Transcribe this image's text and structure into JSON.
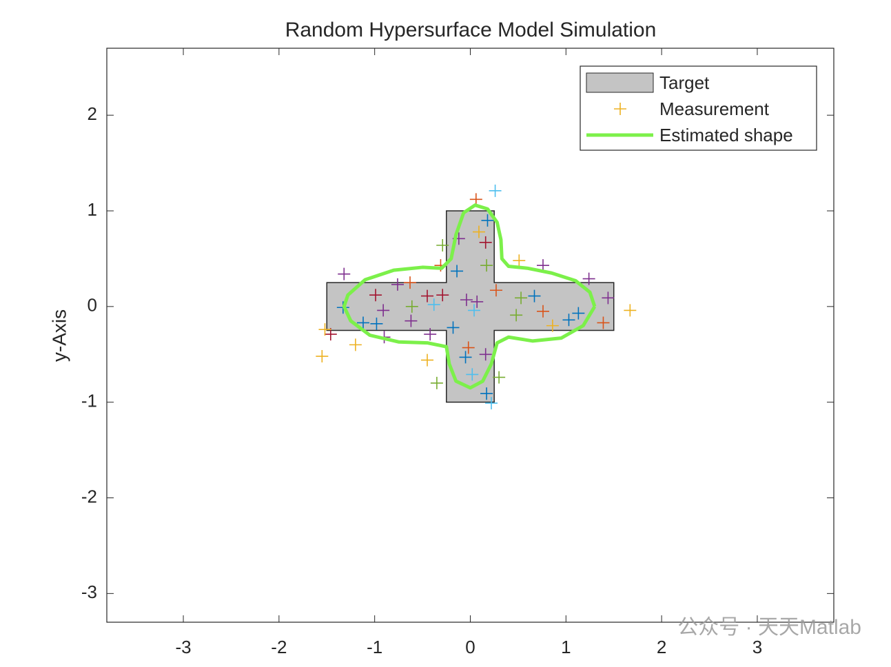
{
  "chart_data": {
    "type": "shape",
    "title": "Random Hypersurface Model Simulation",
    "y_label": "y-Axis",
    "watermark": "公众号 · 天天Matlab",
    "xlim": [
      -3.8,
      3.8
    ],
    "ylim": [
      -3.3,
      2.7
    ],
    "xticks": [
      -3,
      -2,
      -1,
      0,
      1,
      2,
      3
    ],
    "yticks": [
      -3,
      -2,
      -1,
      0,
      1,
      2
    ],
    "legend": "upper right",
    "series": [
      {
        "name": "Target",
        "kind": "polygon",
        "color": "#c4c4c4",
        "x": [
          -0.25,
          0.25,
          0.25,
          1.5,
          1.5,
          0.25,
          0.25,
          -0.25,
          -0.25,
          -1.5,
          -1.5,
          -0.25
        ],
        "y": [
          1,
          1,
          0.25,
          0.25,
          -0.25,
          -0.25,
          -1,
          -1,
          -0.25,
          -0.25,
          0.25,
          0.25
        ]
      },
      {
        "name": "Measurement",
        "kind": "points",
        "color": "#EDB120",
        "x": [
          0.26,
          0.06,
          -1.32,
          -0.29,
          -0.12,
          0.16,
          0.09,
          0.18,
          0.51,
          0.76,
          1.24,
          1.44,
          1.67,
          1.39,
          1.13,
          1.03,
          0.86,
          0.76,
          0.48,
          0.67,
          0.53,
          0.27,
          0.07,
          0.04,
          -0.18,
          -0.14,
          -0.31,
          0.17,
          -0.04,
          -0.29,
          -0.38,
          -0.61,
          -0.45,
          -0.63,
          -0.76,
          -0.99,
          -0.91,
          -1.33,
          -1.12,
          -0.98,
          -0.62,
          -0.42,
          -0.9,
          -1.46,
          -1.52,
          -1.2,
          -1.55,
          -0.45,
          -0.35,
          -0.05,
          -0.02,
          0.16,
          0.3,
          0.02,
          0.22,
          0.17
        ],
        "y": [
          1.21,
          1.12,
          0.34,
          0.64,
          0.71,
          0.67,
          0.78,
          0.9,
          0.48,
          0.43,
          0.29,
          0.09,
          -0.04,
          -0.17,
          -0.07,
          -0.14,
          -0.2,
          -0.05,
          -0.09,
          0.11,
          0.09,
          0.17,
          0.05,
          -0.04,
          -0.22,
          0.37,
          0.43,
          0.43,
          0.07,
          0.12,
          0.02,
          0.0,
          0.11,
          0.25,
          0.23,
          0.12,
          -0.04,
          -0.01,
          -0.17,
          -0.18,
          -0.15,
          -0.29,
          -0.32,
          -0.29,
          -0.24,
          -0.4,
          -0.52,
          -0.56,
          -0.8,
          -0.53,
          -0.43,
          -0.5,
          -0.74,
          -0.71,
          -1.01,
          -0.91
        ],
        "colors": [
          "#4DBEEE",
          "#D95319",
          "#7E2F8E",
          "#77AC30",
          "#7E2F8E",
          "#A2142F",
          "#EDB120",
          "#0072BD",
          "#EDB120",
          "#7E2F8E",
          "#7E2F8E",
          "#7E2F8E",
          "#EDB120",
          "#D95319",
          "#0072BD",
          "#0072BD",
          "#EDB120",
          "#D95319",
          "#77AC30",
          "#0072BD",
          "#77AC30",
          "#D95319",
          "#7E2F8E",
          "#4DBEEE",
          "#0072BD",
          "#0072BD",
          "#D95319",
          "#77AC30",
          "#7E2F8E",
          "#A2142F",
          "#4DBEEE",
          "#77AC30",
          "#A2142F",
          "#D95319",
          "#7E2F8E",
          "#A2142F",
          "#7E2F8E",
          "#0072BD",
          "#0072BD",
          "#0072BD",
          "#7E2F8E",
          "#7E2F8E",
          "#7E2F8E",
          "#A2142F",
          "#EDB120",
          "#EDB120",
          "#EDB120",
          "#EDB120",
          "#77AC30",
          "#0072BD",
          "#D95319",
          "#7E2F8E",
          "#77AC30",
          "#4DBEEE",
          "#4DBEEE",
          "#0072BD"
        ]
      },
      {
        "name": "Estimated shape",
        "kind": "line",
        "color": "#7cf04a",
        "x": [
          1.3,
          1.25,
          1.1,
          0.85,
          0.6,
          0.4,
          0.33,
          0.32,
          0.28,
          0.18,
          0.05,
          -0.07,
          -0.15,
          -0.2,
          -0.3,
          -0.5,
          -0.8,
          -1.1,
          -1.28,
          -1.32,
          -1.25,
          -1.05,
          -0.75,
          -0.45,
          -0.25,
          -0.22,
          -0.15,
          0,
          0.13,
          0.22,
          0.28,
          0.4,
          0.65,
          0.95,
          1.18,
          1.3
        ],
        "y": [
          0.0,
          0.15,
          0.27,
          0.35,
          0.4,
          0.42,
          0.5,
          0.7,
          0.88,
          1.02,
          1.06,
          0.98,
          0.75,
          0.5,
          0.4,
          0.41,
          0.38,
          0.28,
          0.12,
          0.0,
          -0.15,
          -0.3,
          -0.37,
          -0.38,
          -0.42,
          -0.6,
          -0.78,
          -0.85,
          -0.78,
          -0.6,
          -0.38,
          -0.32,
          -0.36,
          -0.33,
          -0.2,
          0.0
        ]
      }
    ]
  }
}
